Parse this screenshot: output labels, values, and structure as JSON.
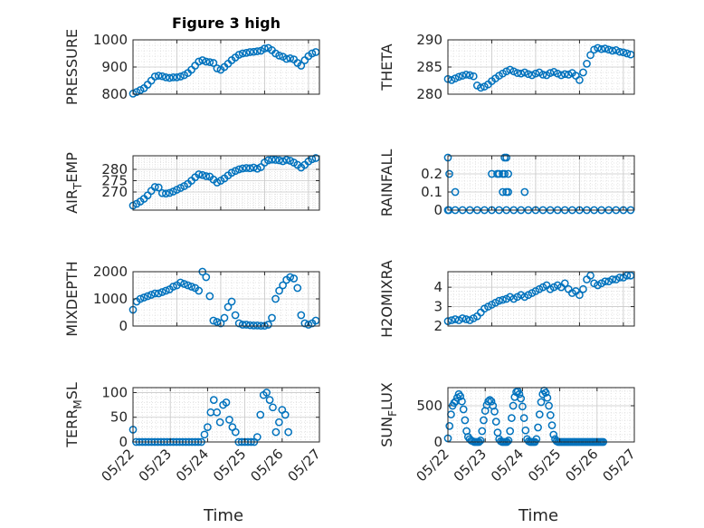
{
  "figure": {
    "title": "Figure 3 high",
    "colors": {
      "marker": "#0072bd",
      "axis": "#262626",
      "grid": "#dcdcdc",
      "background": "#ffffff"
    }
  },
  "chart_data": [
    {
      "type": "scatter",
      "id": "pressure",
      "title": "Figure 3 high",
      "ylabel": "PRESSURE",
      "xlim": [
        "05/22",
        "05/26 06:00"
      ],
      "ylim": [
        800,
        1000
      ],
      "yticks": [
        800,
        900,
        1000
      ],
      "x": [
        "05/22 00:00",
        "05/22 02:00",
        "05/22 04:00",
        "05/22 06:00",
        "05/22 08:00",
        "05/22 10:00",
        "05/22 12:00",
        "05/22 14:00",
        "05/22 16:00",
        "05/22 18:00",
        "05/22 20:00",
        "05/22 22:00",
        "05/23 00:00",
        "05/23 02:00",
        "05/23 04:00",
        "05/23 06:00",
        "05/23 08:00",
        "05/23 10:00",
        "05/23 12:00",
        "05/23 14:00",
        "05/23 16:00",
        "05/23 18:00",
        "05/23 20:00",
        "05/23 22:00",
        "05/24 00:00",
        "05/24 02:00",
        "05/24 04:00",
        "05/24 06:00",
        "05/24 08:00",
        "05/24 10:00",
        "05/24 12:00",
        "05/24 14:00",
        "05/24 16:00",
        "05/24 18:00",
        "05/24 20:00",
        "05/24 22:00",
        "05/25 00:00",
        "05/25 02:00",
        "05/25 04:00",
        "05/25 06:00",
        "05/25 08:00",
        "05/25 10:00",
        "05/25 12:00",
        "05/25 14:00",
        "05/25 16:00",
        "05/25 18:00",
        "05/25 20:00",
        "05/25 22:00",
        "05/26 00:00",
        "05/26 02:00",
        "05/26 04:00"
      ],
      "y": [
        802,
        808,
        815,
        822,
        835,
        850,
        865,
        868,
        866,
        862,
        860,
        862,
        862,
        865,
        870,
        878,
        890,
        905,
        920,
        925,
        920,
        918,
        915,
        895,
        890,
        900,
        912,
        925,
        935,
        945,
        950,
        952,
        955,
        956,
        958,
        960,
        968,
        970,
        962,
        950,
        942,
        938,
        930,
        932,
        928,
        915,
        905,
        925,
        940,
        950,
        955
      ]
    },
    {
      "type": "scatter",
      "id": "theta",
      "ylabel": "THETA",
      "xlim": [
        "05/22",
        "05/26 06:00"
      ],
      "ylim": [
        280,
        290
      ],
      "yticks": [
        280,
        285,
        290
      ],
      "x": [
        "05/22 00:00",
        "05/22 02:00",
        "05/22 04:00",
        "05/22 06:00",
        "05/22 08:00",
        "05/22 10:00",
        "05/22 12:00",
        "05/22 14:00",
        "05/22 16:00",
        "05/22 18:00",
        "05/22 20:00",
        "05/22 22:00",
        "05/23 00:00",
        "05/23 02:00",
        "05/23 04:00",
        "05/23 06:00",
        "05/23 08:00",
        "05/23 10:00",
        "05/23 12:00",
        "05/23 14:00",
        "05/23 16:00",
        "05/23 18:00",
        "05/23 20:00",
        "05/23 22:00",
        "05/24 00:00",
        "05/24 02:00",
        "05/24 04:00",
        "05/24 06:00",
        "05/24 08:00",
        "05/24 10:00",
        "05/24 12:00",
        "05/24 14:00",
        "05/24 16:00",
        "05/24 18:00",
        "05/24 20:00",
        "05/24 22:00",
        "05/25 00:00",
        "05/25 02:00",
        "05/25 04:00",
        "05/25 06:00",
        "05/25 08:00",
        "05/25 10:00",
        "05/25 12:00",
        "05/25 14:00",
        "05/25 16:00",
        "05/25 18:00",
        "05/25 20:00",
        "05/25 22:00",
        "05/26 00:00",
        "05/26 02:00",
        "05/26 04:00"
      ],
      "y": [
        282.8,
        282.6,
        282.9,
        283.2,
        283.4,
        283.6,
        283.5,
        283.3,
        281.6,
        281.2,
        281.4,
        281.8,
        282.4,
        282.9,
        283.4,
        283.8,
        284.2,
        284.5,
        284.2,
        283.9,
        283.8,
        284.0,
        283.7,
        283.5,
        283.8,
        284.0,
        283.6,
        283.5,
        283.9,
        284.1,
        283.8,
        283.5,
        283.7,
        283.6,
        283.9,
        283.4,
        282.6,
        284.0,
        285.6,
        287.2,
        288.2,
        288.5,
        288.3,
        288.4,
        288.2,
        288.0,
        288.1,
        287.8,
        287.7,
        287.5,
        287.3
      ]
    },
    {
      "type": "scatter",
      "id": "air_temp",
      "ylabel": "AIR_TEMP",
      "xlim": [
        "05/22",
        "05/26 06:00"
      ],
      "ylim": [
        262,
        286
      ],
      "yticks": [
        270,
        275,
        280
      ],
      "x": [
        "05/22 00:00",
        "05/22 02:00",
        "05/22 04:00",
        "05/22 06:00",
        "05/22 08:00",
        "05/22 10:00",
        "05/22 12:00",
        "05/22 14:00",
        "05/22 16:00",
        "05/22 18:00",
        "05/22 20:00",
        "05/22 22:00",
        "05/23 00:00",
        "05/23 02:00",
        "05/23 04:00",
        "05/23 06:00",
        "05/23 08:00",
        "05/23 10:00",
        "05/23 12:00",
        "05/23 14:00",
        "05/23 16:00",
        "05/23 18:00",
        "05/23 20:00",
        "05/23 22:00",
        "05/24 00:00",
        "05/24 02:00",
        "05/24 04:00",
        "05/24 06:00",
        "05/24 08:00",
        "05/24 10:00",
        "05/24 12:00",
        "05/24 14:00",
        "05/24 16:00",
        "05/24 18:00",
        "05/24 20:00",
        "05/24 22:00",
        "05/25 00:00",
        "05/25 02:00",
        "05/25 04:00",
        "05/25 06:00",
        "05/25 08:00",
        "05/25 10:00",
        "05/25 12:00",
        "05/25 14:00",
        "05/25 16:00",
        "05/25 18:00",
        "05/25 20:00",
        "05/25 22:00",
        "05/26 00:00",
        "05/26 02:00",
        "05/26 04:00"
      ],
      "y": [
        264.0,
        264.8,
        265.8,
        267.0,
        268.5,
        270.5,
        272.2,
        272.0,
        269.5,
        269.3,
        269.6,
        270.2,
        271.0,
        271.8,
        272.6,
        273.6,
        275.0,
        276.5,
        277.8,
        277.5,
        277.0,
        276.8,
        275.5,
        274.2,
        275.0,
        276.0,
        277.3,
        278.5,
        279.3,
        280.0,
        280.4,
        280.6,
        280.5,
        280.8,
        280.3,
        281.0,
        283.0,
        284.0,
        284.3,
        284.2,
        284.0,
        283.6,
        284.2,
        283.8,
        283.0,
        282.0,
        280.8,
        282.0,
        283.5,
        284.5,
        285.0
      ]
    },
    {
      "type": "scatter",
      "id": "rainfall",
      "ylabel": "RAINFALL",
      "xlim": [
        "05/22",
        "05/26 06:00"
      ],
      "ylim": [
        0,
        0.3
      ],
      "yticks": [
        0,
        0.1,
        0.2
      ],
      "x": [
        "05/22 00:00",
        "05/22 00:30",
        "05/22 04:00",
        "05/22 08:00",
        "05/22 12:00",
        "05/22 16:00",
        "05/22 20:00",
        "05/23 00:00",
        "05/23 04:00",
        "05/23 08:00",
        "05/23 12:00",
        "05/23 16:00",
        "05/23 20:00",
        "05/24 00:00",
        "05/24 04:00",
        "05/24 08:00",
        "05/24 12:00",
        "05/24 16:00",
        "05/24 20:00",
        "05/25 00:00",
        "05/25 04:00",
        "05/25 08:00",
        "05/25 12:00",
        "05/25 16:00",
        "05/25 20:00",
        "05/26 00:00",
        "05/26 04:00",
        "05/22 00:00",
        "05/22 00:45",
        "05/22 04:00",
        "05/23 00:00",
        "05/23 03:00",
        "05/23 04:00",
        "05/23 06:00",
        "05/23 06:00",
        "05/23 07:00",
        "05/23 07:00",
        "05/23 08:00",
        "05/23 08:00",
        "05/23 09:00",
        "05/23 09:00",
        "05/23 18:00"
      ],
      "y": [
        0,
        0,
        0,
        0,
        0,
        0,
        0,
        0,
        0,
        0,
        0,
        0,
        0,
        0,
        0,
        0,
        0,
        0,
        0,
        0,
        0,
        0,
        0,
        0,
        0,
        0,
        0,
        0.29,
        0.2,
        0.1,
        0.2,
        0.2,
        0.2,
        0.2,
        0.1,
        0.29,
        0.2,
        0.29,
        0.1,
        0.2,
        0.1,
        0.1
      ]
    },
    {
      "type": "scatter",
      "id": "mixdepth",
      "ylabel": "MIXDEPTH",
      "xlim": [
        "05/22",
        "05/26 06:00"
      ],
      "ylim": [
        0,
        2000
      ],
      "yticks": [
        0,
        1000,
        2000
      ],
      "x": [
        "05/22 00:00",
        "05/22 02:00",
        "05/22 04:00",
        "05/22 06:00",
        "05/22 08:00",
        "05/22 10:00",
        "05/22 12:00",
        "05/22 14:00",
        "05/22 16:00",
        "05/22 18:00",
        "05/22 20:00",
        "05/22 22:00",
        "05/23 00:00",
        "05/23 02:00",
        "05/23 04:00",
        "05/23 06:00",
        "05/23 08:00",
        "05/23 10:00",
        "05/23 12:00",
        "05/23 14:00",
        "05/23 16:00",
        "05/23 18:00",
        "05/23 20:00",
        "05/23 22:00",
        "05/24 00:00",
        "05/24 02:00",
        "05/24 04:00",
        "05/24 06:00",
        "05/24 08:00",
        "05/24 10:00",
        "05/24 12:00",
        "05/24 14:00",
        "05/24 16:00",
        "05/24 18:00",
        "05/24 20:00",
        "05/24 22:00",
        "05/25 00:00",
        "05/25 02:00",
        "05/25 04:00",
        "05/25 06:00",
        "05/25 08:00",
        "05/25 10:00",
        "05/25 12:00",
        "05/25 14:00",
        "05/25 16:00",
        "05/25 18:00",
        "05/25 20:00",
        "05/25 22:00",
        "05/26 00:00",
        "05/26 02:00",
        "05/26 04:00"
      ],
      "y": [
        600,
        900,
        1000,
        1050,
        1100,
        1150,
        1200,
        1200,
        1250,
        1300,
        1350,
        1450,
        1500,
        1600,
        1550,
        1500,
        1450,
        1400,
        1300,
        2000,
        1800,
        1100,
        200,
        150,
        100,
        300,
        700,
        900,
        400,
        100,
        50,
        50,
        30,
        20,
        20,
        10,
        10,
        50,
        300,
        1000,
        1300,
        1500,
        1700,
        1800,
        1750,
        1400,
        400,
        100,
        50,
        100,
        200
      ]
    },
    {
      "type": "scatter",
      "id": "h2omixra",
      "ylabel": "H2OMIXRA",
      "xlim": [
        "05/22",
        "05/26 06:00"
      ],
      "ylim": [
        2,
        4.8
      ],
      "yticks": [
        2,
        3,
        4
      ],
      "x": [
        "05/22 00:00",
        "05/22 02:00",
        "05/22 04:00",
        "05/22 06:00",
        "05/22 08:00",
        "05/22 10:00",
        "05/22 12:00",
        "05/22 14:00",
        "05/22 16:00",
        "05/22 18:00",
        "05/22 20:00",
        "05/22 22:00",
        "05/23 00:00",
        "05/23 02:00",
        "05/23 04:00",
        "05/23 06:00",
        "05/23 08:00",
        "05/23 10:00",
        "05/23 12:00",
        "05/23 14:00",
        "05/23 16:00",
        "05/23 18:00",
        "05/23 20:00",
        "05/23 22:00",
        "05/24 00:00",
        "05/24 02:00",
        "05/24 04:00",
        "05/24 06:00",
        "05/24 08:00",
        "05/24 10:00",
        "05/24 12:00",
        "05/24 14:00",
        "05/24 16:00",
        "05/24 18:00",
        "05/24 20:00",
        "05/24 22:00",
        "05/25 00:00",
        "05/25 02:00",
        "05/25 04:00",
        "05/25 06:00",
        "05/25 08:00",
        "05/25 10:00",
        "05/25 12:00",
        "05/25 14:00",
        "05/25 16:00",
        "05/25 18:00",
        "05/25 20:00",
        "05/25 22:00",
        "05/26 00:00",
        "05/26 02:00",
        "05/26 04:00"
      ],
      "y": [
        2.25,
        2.3,
        2.35,
        2.3,
        2.4,
        2.35,
        2.3,
        2.4,
        2.5,
        2.7,
        2.9,
        3.0,
        3.1,
        3.2,
        3.3,
        3.35,
        3.4,
        3.5,
        3.4,
        3.5,
        3.6,
        3.5,
        3.6,
        3.7,
        3.8,
        3.9,
        4.0,
        4.1,
        3.9,
        4.0,
        4.1,
        4.0,
        4.2,
        3.9,
        3.7,
        3.8,
        3.6,
        3.9,
        4.4,
        4.6,
        4.2,
        4.1,
        4.2,
        4.3,
        4.3,
        4.4,
        4.4,
        4.5,
        4.5,
        4.6,
        4.6
      ]
    },
    {
      "type": "scatter",
      "id": "terr_msl",
      "ylabel": "TERR_MSL",
      "xlim": [
        "05/22",
        "05/27"
      ],
      "ylim": [
        0,
        110
      ],
      "yticks": [
        0,
        50,
        100
      ],
      "x": [
        "05/22 00:00",
        "05/22 02:00",
        "05/22 04:00",
        "05/22 06:00",
        "05/22 08:00",
        "05/22 10:00",
        "05/22 12:00",
        "05/22 14:00",
        "05/22 16:00",
        "05/22 18:00",
        "05/22 20:00",
        "05/22 22:00",
        "05/23 00:00",
        "05/23 02:00",
        "05/23 04:00",
        "05/23 06:00",
        "05/23 08:00",
        "05/23 10:00",
        "05/23 12:00",
        "05/23 14:00",
        "05/23 16:00",
        "05/23 18:00",
        "05/23 20:00",
        "05/23 22:00",
        "05/24 00:00",
        "05/24 02:00",
        "05/24 04:00",
        "05/24 06:00",
        "05/24 08:00",
        "05/24 10:00",
        "05/24 12:00",
        "05/24 14:00",
        "05/24 16:00",
        "05/24 18:00",
        "05/24 20:00",
        "05/24 22:00",
        "05/25 00:00",
        "05/25 02:00",
        "05/25 04:00",
        "05/25 06:00",
        "05/25 08:00",
        "05/25 10:00",
        "05/25 12:00",
        "05/25 14:00",
        "05/25 16:00",
        "05/25 18:00",
        "05/25 20:00",
        "05/25 22:00",
        "05/26 00:00",
        "05/26 02:00",
        "05/26 04:00"
      ],
      "y": [
        25,
        0,
        0,
        0,
        0,
        0,
        0,
        0,
        0,
        0,
        0,
        0,
        0,
        0,
        0,
        0,
        0,
        0,
        0,
        0,
        0,
        0,
        0,
        15,
        30,
        60,
        85,
        60,
        40,
        75,
        80,
        45,
        30,
        20,
        0,
        0,
        0,
        0,
        0,
        0,
        10,
        55,
        95,
        100,
        85,
        70,
        20,
        40,
        65,
        55,
        20
      ]
    },
    {
      "type": "scatter",
      "id": "sun_flux",
      "ylabel": "SUN_FLUX",
      "xlim": [
        "05/22",
        "05/27"
      ],
      "ylim": [
        0,
        750
      ],
      "yticks": [
        0,
        500
      ],
      "x": [
        "05/22 00:00",
        "05/22 01:00",
        "05/22 02:00",
        "05/22 03:00",
        "05/22 04:00",
        "05/22 05:00",
        "05/22 06:00",
        "05/22 07:00",
        "05/22 08:00",
        "05/22 09:00",
        "05/22 10:00",
        "05/22 11:00",
        "05/22 12:00",
        "05/22 13:00",
        "05/22 14:00",
        "05/22 15:00",
        "05/22 16:00",
        "05/22 17:00",
        "05/22 18:00",
        "05/22 19:00",
        "05/22 20:00",
        "05/22 21:00",
        "05/22 22:00",
        "05/22 23:00",
        "05/23 00:00",
        "05/23 01:00",
        "05/23 02:00",
        "05/23 03:00",
        "05/23 04:00",
        "05/23 05:00",
        "05/23 06:00",
        "05/23 07:00",
        "05/23 08:00",
        "05/23 09:00",
        "05/23 10:00",
        "05/23 11:00",
        "05/23 12:00",
        "05/23 13:00",
        "05/23 14:00",
        "05/23 15:00",
        "05/23 16:00",
        "05/23 17:00",
        "05/23 18:00",
        "05/23 19:00",
        "05/23 20:00",
        "05/23 21:00",
        "05/23 22:00",
        "05/23 23:00",
        "05/24 00:00",
        "05/24 01:00",
        "05/24 02:00",
        "05/24 03:00",
        "05/24 04:00",
        "05/24 05:00",
        "05/24 06:00",
        "05/24 07:00",
        "05/24 08:00",
        "05/24 09:00",
        "05/24 10:00",
        "05/24 11:00",
        "05/24 12:00",
        "05/24 13:00",
        "05/24 14:00",
        "05/24 15:00",
        "05/24 16:00",
        "05/24 17:00",
        "05/24 18:00",
        "05/24 19:00",
        "05/24 20:00",
        "05/24 21:00",
        "05/24 22:00",
        "05/24 23:00",
        "05/25 00:00",
        "05/25 01:00",
        "05/25 02:00",
        "05/25 03:00",
        "05/25 04:00",
        "05/25 05:00",
        "05/25 06:00",
        "05/25 07:00",
        "05/25 08:00",
        "05/25 09:00",
        "05/25 10:00",
        "05/25 11:00",
        "05/25 12:00",
        "05/25 13:00",
        "05/25 14:00",
        "05/25 15:00",
        "05/25 16:00",
        "05/25 17:00",
        "05/25 18:00",
        "05/25 19:00",
        "05/25 20:00",
        "05/25 21:00",
        "05/25 22:00",
        "05/25 23:00",
        "05/26 00:00",
        "05/26 01:00",
        "05/26 02:00",
        "05/26 03:00",
        "05/26 04:00"
      ],
      "y": [
        50,
        220,
        380,
        500,
        540,
        560,
        610,
        660,
        630,
        560,
        450,
        300,
        150,
        70,
        40,
        20,
        10,
        0,
        0,
        0,
        0,
        20,
        150,
        300,
        430,
        510,
        560,
        580,
        560,
        500,
        420,
        280,
        130,
        40,
        10,
        0,
        0,
        0,
        0,
        20,
        150,
        330,
        500,
        620,
        690,
        700,
        660,
        600,
        490,
        330,
        160,
        40,
        10,
        0,
        0,
        0,
        0,
        40,
        200,
        380,
        550,
        660,
        710,
        680,
        610,
        500,
        370,
        230,
        100,
        40,
        10,
        0,
        0,
        0,
        0,
        0,
        0,
        0,
        0,
        0,
        0,
        0,
        0,
        0,
        0,
        0,
        0,
        0,
        0,
        0,
        0,
        0,
        0,
        0,
        0,
        0,
        0,
        0,
        0,
        0,
        0
      ]
    }
  ],
  "xaxis": {
    "ticks": [
      "05/22",
      "05/23",
      "05/24",
      "05/25",
      "05/26",
      "05/27"
    ],
    "label": "Time"
  }
}
